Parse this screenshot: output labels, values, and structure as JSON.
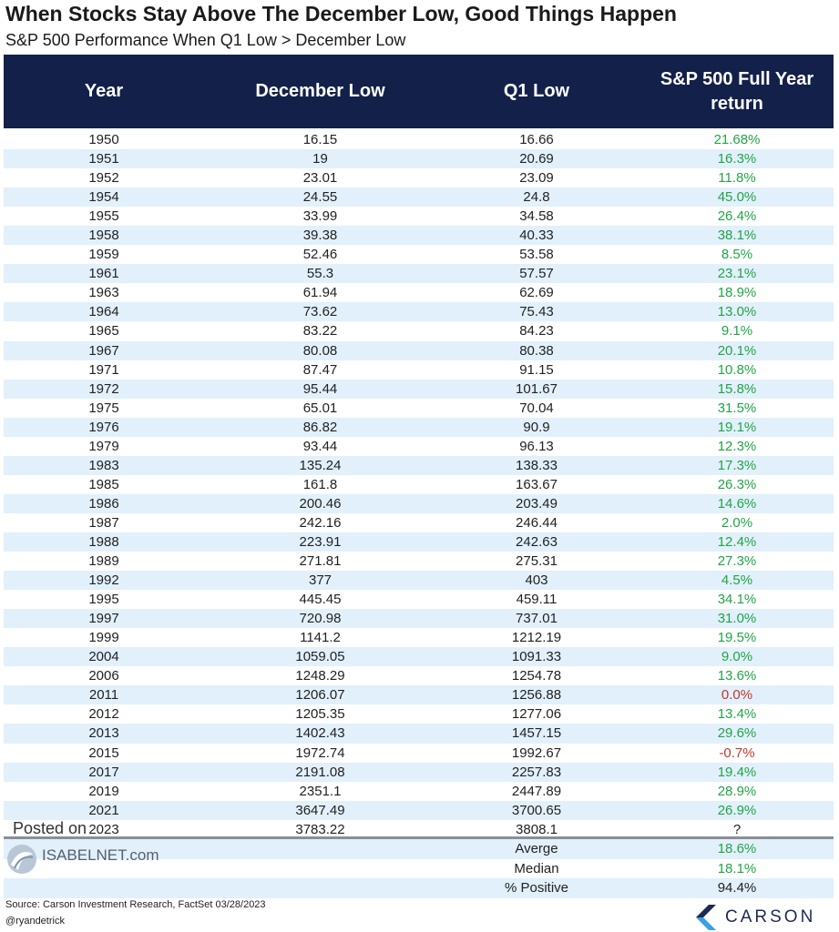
{
  "title": "When Stocks Stay Above The December Low, Good Things Happen",
  "subtitle": "S&P 500 Performance When Q1 Low > December Low",
  "chart_data": {
    "type": "table",
    "columns": [
      "Year",
      "December Low",
      "Q1 Low",
      "S&P 500 Full Year return"
    ],
    "rows": [
      [
        "1950",
        "16.15",
        "16.66",
        "21.68%"
      ],
      [
        "1951",
        "19",
        "20.69",
        "16.3%"
      ],
      [
        "1952",
        "23.01",
        "23.09",
        "11.8%"
      ],
      [
        "1954",
        "24.55",
        "24.8",
        "45.0%"
      ],
      [
        "1955",
        "33.99",
        "34.58",
        "26.4%"
      ],
      [
        "1958",
        "39.38",
        "40.33",
        "38.1%"
      ],
      [
        "1959",
        "52.46",
        "53.58",
        "8.5%"
      ],
      [
        "1961",
        "55.3",
        "57.57",
        "23.1%"
      ],
      [
        "1963",
        "61.94",
        "62.69",
        "18.9%"
      ],
      [
        "1964",
        "73.62",
        "75.43",
        "13.0%"
      ],
      [
        "1965",
        "83.22",
        "84.23",
        "9.1%"
      ],
      [
        "1967",
        "80.08",
        "80.38",
        "20.1%"
      ],
      [
        "1971",
        "87.47",
        "91.15",
        "10.8%"
      ],
      [
        "1972",
        "95.44",
        "101.67",
        "15.8%"
      ],
      [
        "1975",
        "65.01",
        "70.04",
        "31.5%"
      ],
      [
        "1976",
        "86.82",
        "90.9",
        "19.1%"
      ],
      [
        "1979",
        "93.44",
        "96.13",
        "12.3%"
      ],
      [
        "1983",
        "135.24",
        "138.33",
        "17.3%"
      ],
      [
        "1985",
        "161.8",
        "163.67",
        "26.3%"
      ],
      [
        "1986",
        "200.46",
        "203.49",
        "14.6%"
      ],
      [
        "1987",
        "242.16",
        "246.44",
        "2.0%"
      ],
      [
        "1988",
        "223.91",
        "242.63",
        "12.4%"
      ],
      [
        "1989",
        "271.81",
        "275.31",
        "27.3%"
      ],
      [
        "1992",
        "377",
        "403",
        "4.5%"
      ],
      [
        "1995",
        "445.45",
        "459.11",
        "34.1%"
      ],
      [
        "1997",
        "720.98",
        "737.01",
        "31.0%"
      ],
      [
        "1999",
        "1141.2",
        "1212.19",
        "19.5%"
      ],
      [
        "2004",
        "1059.05",
        "1091.33",
        "9.0%"
      ],
      [
        "2006",
        "1248.29",
        "1254.78",
        "13.6%"
      ],
      [
        "2011",
        "1206.07",
        "1256.88",
        "0.0%"
      ],
      [
        "2012",
        "1205.35",
        "1277.06",
        "13.4%"
      ],
      [
        "2013",
        "1402.43",
        "1457.15",
        "29.6%"
      ],
      [
        "2015",
        "1972.74",
        "1992.67",
        "-0.7%"
      ],
      [
        "2017",
        "2191.08",
        "2257.83",
        "19.4%"
      ],
      [
        "2019",
        "2351.1",
        "2447.89",
        "28.9%"
      ],
      [
        "2021",
        "3647.49",
        "3700.65",
        "26.9%"
      ],
      [
        "2023",
        "3783.22",
        "3808.1",
        "?"
      ]
    ],
    "summary": [
      {
        "label": "Averge",
        "value": "18.6%"
      },
      {
        "label": "Median",
        "value": "18.1%"
      },
      {
        "label": "% Positive",
        "value": "94.4%"
      }
    ]
  },
  "colors": {
    "header_bg": "#13204a",
    "stripe": "#e2f0fb",
    "positive": "#21a546",
    "negative": "#c0392b",
    "carson_blue": "#1d2a55"
  },
  "watermark": {
    "posted": "Posted on",
    "site": "ISABELNET.com",
    "icon": "isabelnet-logo-icon"
  },
  "source": "Source: Carson Investment Research, FactSet 03/28/2023",
  "handle": "@ryandetrick",
  "brand": {
    "name": "CARSON",
    "icon": "carson-logo-icon"
  }
}
